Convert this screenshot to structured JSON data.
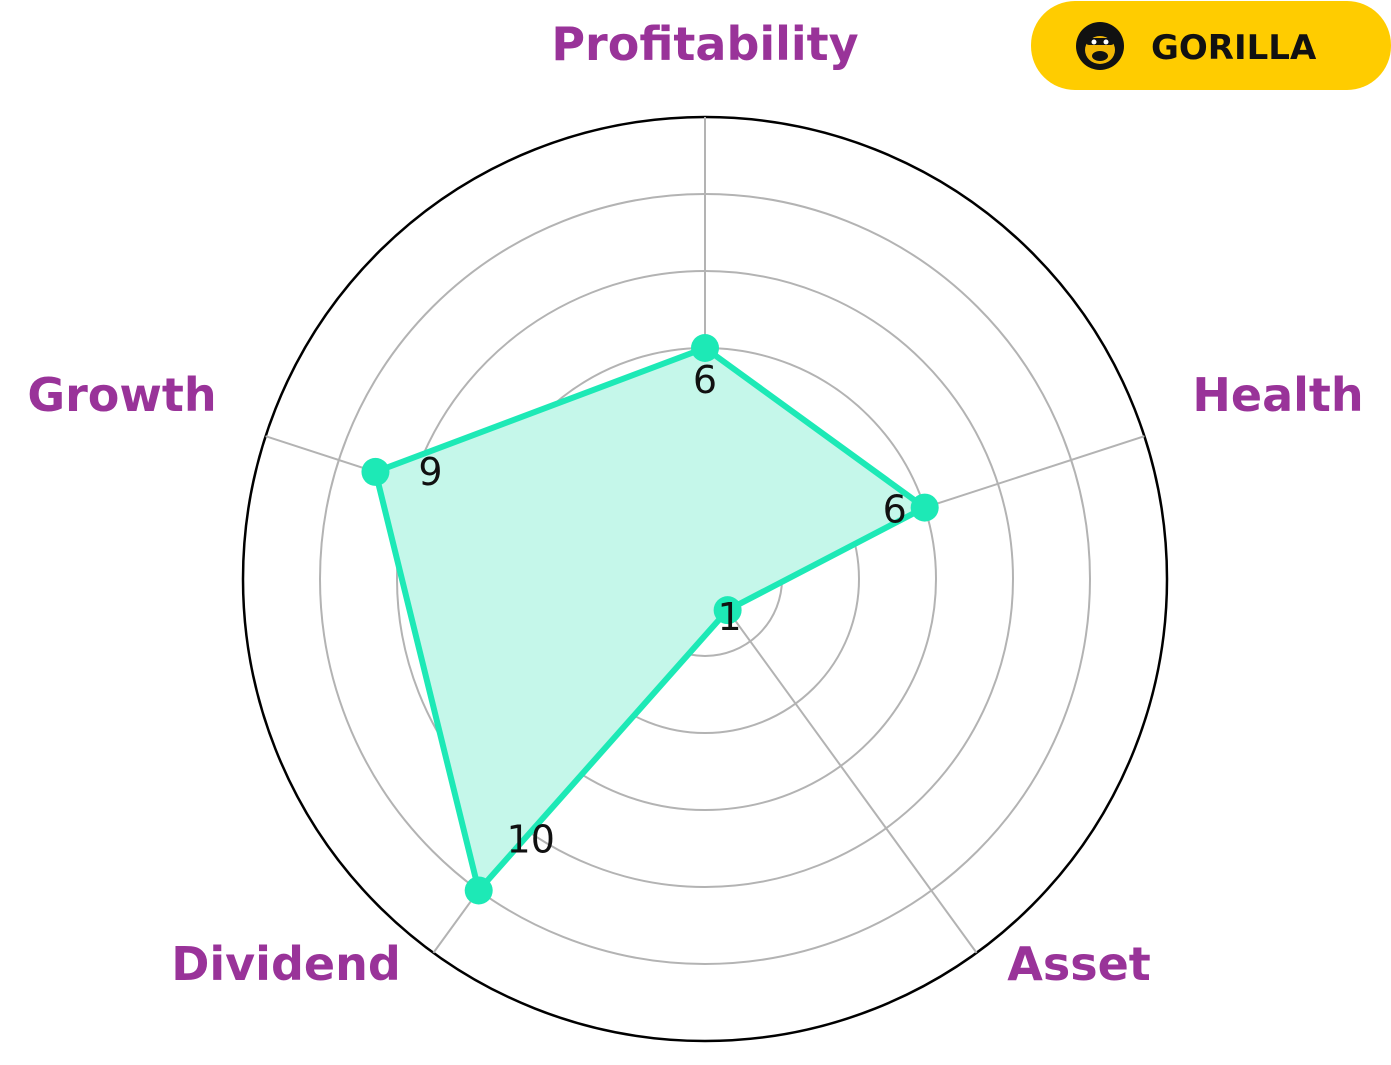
{
  "badge": {
    "text": "GORILLA",
    "color": "#FFCC00",
    "icon": "gorilla-face-icon"
  },
  "colors": {
    "series": "#1DE9B6",
    "fill": "#C5F7EA",
    "axis_label": "#993399",
    "grid": "#B3B3B3",
    "outer_ring": "#000000"
  },
  "chart_data": {
    "type": "radar",
    "categories": [
      "Profitability",
      "Health",
      "Asset",
      "Dividend",
      "Growth"
    ],
    "series": [
      {
        "values": [
          6,
          6,
          1,
          10,
          9
        ]
      }
    ],
    "value_labels": [
      "6",
      "6",
      "1",
      "10",
      "9"
    ],
    "rlim": [
      0,
      12
    ],
    "rings": [
      2,
      4,
      6,
      8,
      10,
      12
    ],
    "grid": true,
    "legend": "none"
  }
}
